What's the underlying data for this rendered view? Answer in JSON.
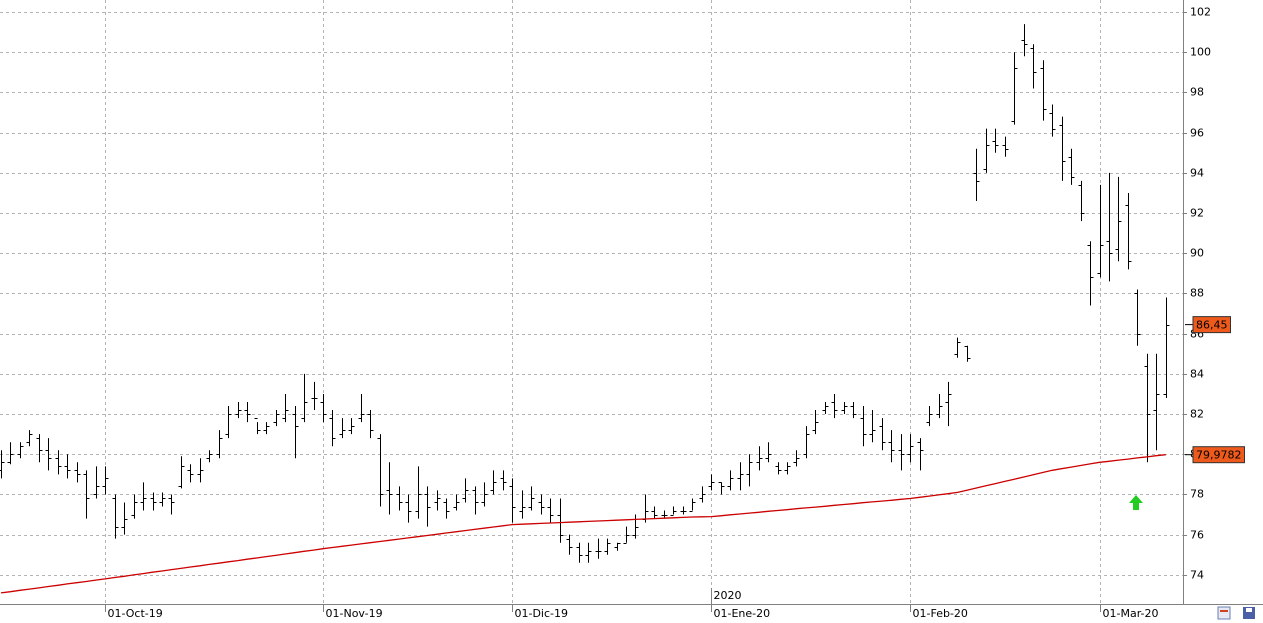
{
  "chart_data": {
    "type": "ohlc",
    "grid": true,
    "annotation": "2020",
    "ylim": [
      72.55,
      102.6
    ],
    "yticks": [
      74,
      76,
      78,
      80,
      82,
      84,
      86,
      88,
      90,
      92,
      94,
      96,
      98,
      100,
      102
    ],
    "categories": [
      null,
      null,
      null,
      null,
      null,
      null,
      null,
      null,
      null,
      null,
      null,
      "01-Oct-19",
      null,
      null,
      null,
      null,
      null,
      null,
      null,
      null,
      null,
      null,
      null,
      null,
      null,
      null,
      null,
      null,
      null,
      null,
      null,
      null,
      null,
      null,
      "01-Nov-19",
      null,
      null,
      null,
      null,
      null,
      null,
      null,
      null,
      null,
      null,
      null,
      null,
      null,
      null,
      null,
      null,
      null,
      null,
      null,
      "01-Dic-19",
      null,
      null,
      null,
      null,
      null,
      null,
      null,
      null,
      null,
      null,
      null,
      null,
      null,
      null,
      null,
      null,
      null,
      null,
      null,
      null,
      "01-Ene-20",
      null,
      null,
      null,
      null,
      null,
      null,
      null,
      null,
      null,
      null,
      null,
      null,
      null,
      null,
      null,
      null,
      null,
      null,
      null,
      null,
      "01-Feb-20",
      null,
      null,
      null,
      null,
      null,
      null,
      null,
      null,
      null,
      null,
      null,
      null,
      null,
      null,
      null,
      null,
      null,
      null,
      null,
      "01-Mar-20",
      null,
      null,
      null,
      null,
      null,
      null,
      null
    ],
    "ohlc": {
      "color": "#000000",
      "open": [
        79.2,
        79.6,
        80.0,
        80.6,
        80.8,
        80.2,
        79.8,
        79.4,
        79.2,
        79.0,
        78.0,
        78.4,
        77.8,
        76.4,
        77.0,
        77.6,
        77.8,
        77.6,
        77.8,
        78.4,
        79.2,
        79.0,
        79.8,
        80.0,
        81.0,
        82.0,
        82.2,
        81.8,
        81.2,
        81.6,
        81.8,
        82.0,
        81.8,
        82.8,
        82.6,
        81.8,
        81.0,
        81.2,
        81.8,
        82.0,
        80.8,
        78.2,
        78.0,
        77.6,
        77.2,
        78.0,
        77.6,
        77.6,
        77.4,
        77.8,
        78.2,
        77.6,
        78.2,
        78.8,
        78.4,
        77.2,
        77.4,
        77.6,
        77.4,
        77.0,
        75.8,
        75.4,
        75.0,
        75.2,
        75.2,
        75.4,
        75.6,
        76.0,
        76.8,
        77.2,
        77.0,
        77.0,
        77.2,
        77.2,
        77.8,
        78.4,
        78.6,
        78.4,
        78.8,
        79.0,
        79.6,
        79.8,
        79.4,
        79.2,
        79.6,
        80.0,
        81.2,
        82.2,
        82.6,
        82.2,
        82.4,
        81.8,
        81.0,
        81.4,
        80.6,
        80.2,
        80.0,
        80.6,
        81.6,
        82.0,
        82.6,
        85.0,
        85.4,
        94.0,
        94.2,
        95.6,
        95.4,
        96.6,
        100.6,
        100.2,
        99.2,
        97.0,
        96.4,
        94.8,
        93.4,
        90.4,
        89.0,
        90.6,
        90.2,
        92.4,
        88.0,
        84.4,
        82.2,
        83.0
      ],
      "high": [
        80.2,
        80.6,
        80.6,
        81.2,
        81.0,
        80.8,
        80.2,
        80.0,
        79.6,
        79.2,
        79.4,
        79.4,
        78.0,
        77.6,
        78.0,
        78.6,
        78.1,
        78.1,
        78.0,
        79.9,
        79.5,
        79.8,
        80.2,
        81.2,
        82.4,
        82.6,
        82.6,
        81.6,
        81.6,
        82.2,
        83.0,
        82.4,
        84.0,
        83.6,
        83.0,
        82.2,
        81.8,
        81.8,
        83.0,
        82.2,
        81.0,
        79.6,
        78.4,
        78.0,
        79.4,
        78.4,
        78.2,
        77.8,
        78.0,
        78.8,
        78.4,
        78.6,
        79.2,
        79.2,
        78.8,
        78.2,
        78.4,
        78.0,
        77.8,
        77.8,
        76.0,
        75.6,
        75.6,
        75.8,
        75.8,
        75.6,
        76.4,
        77.0,
        78.0,
        77.4,
        77.2,
        77.4,
        77.4,
        77.8,
        78.4,
        79.0,
        78.6,
        79.2,
        79.6,
        80.0,
        80.4,
        80.6,
        79.6,
        79.6,
        80.2,
        81.4,
        82.2,
        82.6,
        83.0,
        82.6,
        82.6,
        82.4,
        82.2,
        81.8,
        81.2,
        81.0,
        81.0,
        80.8,
        82.4,
        83.0,
        83.6,
        85.8,
        85.4,
        95.2,
        96.2,
        96.2,
        95.8,
        100.0,
        101.4,
        100.4,
        99.6,
        97.4,
        96.8,
        95.2,
        93.6,
        90.6,
        93.4,
        94.0,
        93.8,
        93.0,
        88.2,
        85.0,
        85.0,
        87.8
      ],
      "low": [
        78.8,
        79.5,
        79.8,
        80.4,
        79.6,
        79.2,
        79.0,
        78.8,
        78.6,
        76.8,
        77.8,
        78.0,
        75.8,
        76.0,
        76.8,
        77.2,
        77.2,
        77.4,
        77.0,
        78.3,
        78.6,
        78.6,
        79.6,
        79.8,
        80.8,
        81.8,
        81.6,
        81.0,
        81.0,
        81.4,
        81.6,
        79.8,
        81.6,
        82.2,
        81.6,
        80.4,
        80.8,
        81.0,
        81.6,
        80.8,
        77.4,
        77.0,
        77.2,
        76.6,
        76.8,
        76.4,
        77.2,
        76.8,
        77.2,
        77.6,
        77.0,
        77.4,
        78.0,
        78.2,
        76.6,
        76.8,
        77.2,
        77.0,
        76.6,
        75.6,
        75.0,
        74.6,
        74.6,
        74.8,
        75.0,
        75.2,
        75.6,
        75.8,
        76.6,
        76.8,
        76.8,
        77.0,
        77.0,
        77.2,
        77.6,
        78.2,
        78.0,
        78.2,
        78.2,
        78.4,
        79.2,
        79.6,
        79.0,
        79.0,
        79.4,
        79.8,
        81.0,
        82.0,
        81.8,
        82.0,
        81.8,
        80.4,
        80.6,
        80.2,
        79.6,
        79.2,
        79.6,
        79.2,
        81.4,
        81.8,
        81.4,
        84.8,
        84.6,
        92.6,
        94.0,
        95.0,
        94.8,
        96.4,
        99.8,
        98.2,
        96.6,
        95.8,
        93.6,
        93.4,
        91.6,
        87.4,
        88.8,
        88.6,
        89.6,
        89.2,
        85.4,
        79.6,
        80.2,
        82.8
      ],
      "close": [
        79.6,
        80.0,
        80.4,
        81.0,
        80.2,
        79.8,
        79.4,
        79.2,
        79.0,
        77.8,
        78.4,
        78.8,
        76.4,
        76.8,
        77.6,
        77.8,
        77.6,
        77.8,
        77.6,
        79.4,
        79.0,
        79.2,
        80.0,
        80.8,
        82.0,
        82.2,
        82.0,
        81.2,
        81.4,
        82.0,
        82.2,
        81.4,
        82.6,
        82.8,
        82.0,
        80.8,
        81.2,
        81.4,
        82.0,
        81.2,
        78.0,
        78.0,
        77.6,
        77.2,
        78.0,
        77.4,
        77.8,
        77.2,
        77.6,
        78.2,
        77.6,
        78.0,
        78.6,
        78.6,
        77.4,
        77.4,
        77.8,
        77.4,
        77.0,
        76.0,
        75.4,
        75.0,
        75.2,
        75.2,
        75.6,
        75.6,
        76.0,
        76.4,
        77.2,
        77.0,
        77.0,
        77.2,
        77.2,
        77.6,
        78.0,
        78.6,
        78.4,
        78.8,
        79.0,
        79.6,
        79.8,
        80.0,
        79.2,
        79.4,
        79.8,
        81.0,
        81.6,
        82.4,
        82.2,
        82.4,
        82.0,
        81.0,
        81.2,
        80.6,
        80.2,
        80.0,
        80.4,
        80.2,
        82.0,
        82.4,
        83.0,
        85.6,
        84.8,
        93.6,
        95.4,
        95.4,
        95.2,
        99.2,
        100.4,
        99.0,
        97.2,
        96.2,
        94.6,
        93.8,
        92.0,
        88.8,
        90.4,
        90.0,
        91.6,
        89.6,
        86.0,
        82.0,
        83.0,
        86.45
      ],
      "last_label": {
        "value": 86.45,
        "label": "86,45"
      }
    },
    "line": {
      "color": "#cc0000",
      "values": [
        73.1,
        73.16,
        73.23,
        73.29,
        73.35,
        73.42,
        73.48,
        73.55,
        73.61,
        73.67,
        73.74,
        73.8,
        73.87,
        73.93,
        74.0,
        74.06,
        74.13,
        74.19,
        74.26,
        74.32,
        74.39,
        74.45,
        74.52,
        74.58,
        74.65,
        74.71,
        74.78,
        74.84,
        74.91,
        74.97,
        75.04,
        75.1,
        75.17,
        75.23,
        75.3,
        75.36,
        75.42,
        75.48,
        75.54,
        75.6,
        75.66,
        75.72,
        75.78,
        75.84,
        75.9,
        75.96,
        76.02,
        76.08,
        76.14,
        76.2,
        76.26,
        76.32,
        76.38,
        76.44,
        76.5,
        76.52,
        76.54,
        76.56,
        76.58,
        76.6,
        76.62,
        76.64,
        76.66,
        76.68,
        76.7,
        76.72,
        76.74,
        76.76,
        76.78,
        76.8,
        76.82,
        76.84,
        76.86,
        76.88,
        76.89,
        76.9,
        76.94,
        76.99,
        77.03,
        77.07,
        77.11,
        77.16,
        77.2,
        77.24,
        77.29,
        77.33,
        77.37,
        77.41,
        77.46,
        77.5,
        77.54,
        77.59,
        77.63,
        77.67,
        77.71,
        77.76,
        77.8,
        77.86,
        77.92,
        77.98,
        78.04,
        78.1,
        78.21,
        78.32,
        78.43,
        78.54,
        78.65,
        78.76,
        78.87,
        78.98,
        79.09,
        79.2,
        79.28,
        79.36,
        79.44,
        79.52,
        79.6,
        79.65,
        79.71,
        79.76,
        79.82,
        79.87,
        79.93,
        79.98
      ],
      "last_label": {
        "value": 79.9782,
        "label": "79,9782"
      }
    }
  }
}
